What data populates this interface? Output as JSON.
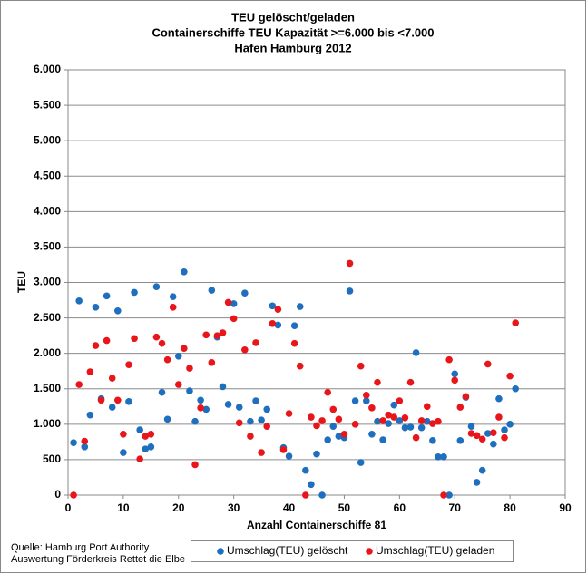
{
  "chart_data": {
    "type": "scatter",
    "title": [
      "TEU gelöscht/geladen",
      "Containerschiffe TEU Kapazität >=6.000 bis <7.000",
      "Hafen Hamburg 2012"
    ],
    "xlabel": "Anzahl Containerschiffe 81",
    "ylabel": "TEU",
    "source": [
      "Quelle: Hamburg Port Authority",
      "Auswertung Förderkreis Rettet die Elbe"
    ],
    "x": [
      1,
      2,
      3,
      4,
      5,
      6,
      7,
      8,
      9,
      10,
      11,
      12,
      13,
      14,
      15,
      16,
      17,
      18,
      19,
      20,
      21,
      22,
      23,
      24,
      25,
      26,
      27,
      28,
      29,
      30,
      31,
      32,
      33,
      34,
      35,
      36,
      37,
      38,
      39,
      40,
      41,
      42,
      43,
      44,
      45,
      46,
      47,
      48,
      49,
      50,
      51,
      52,
      53,
      54,
      55,
      56,
      57,
      58,
      59,
      60,
      61,
      62,
      63,
      64,
      65,
      66,
      67,
      68,
      69,
      70,
      71,
      72,
      73,
      74,
      75,
      76,
      77,
      78,
      79,
      80,
      81
    ],
    "series": [
      {
        "name": "Umschlag(TEU) gelöscht",
        "color": "#1f6fbf",
        "values": [
          740,
          2740,
          680,
          1130,
          2650,
          1360,
          2810,
          1240,
          2600,
          600,
          1320,
          2860,
          920,
          650,
          680,
          2940,
          1450,
          1070,
          2800,
          1960,
          3150,
          1470,
          1040,
          1340,
          1210,
          2890,
          2230,
          1530,
          1280,
          2700,
          1240,
          2850,
          1040,
          1330,
          1060,
          1210,
          2670,
          2400,
          670,
          550,
          2390,
          2660,
          350,
          150,
          580,
          0,
          780,
          970,
          830,
          810,
          2880,
          1330,
          460,
          1330,
          860,
          1040,
          780,
          1010,
          1270,
          1050,
          950,
          960,
          2010,
          950,
          1040,
          770,
          540,
          540,
          0,
          1710,
          770,
          1380,
          970,
          180,
          350,
          870,
          720,
          1360,
          920,
          1000,
          1500
        ]
      },
      {
        "name": "Umschlag(TEU) geladen",
        "color": "#e8161b",
        "values": [
          0,
          1560,
          760,
          1740,
          2110,
          1340,
          2180,
          1650,
          1340,
          860,
          1840,
          2210,
          510,
          830,
          860,
          2230,
          2140,
          1910,
          2650,
          1560,
          2070,
          1790,
          430,
          1230,
          2260,
          1870,
          2250,
          2290,
          2720,
          2490,
          1020,
          2050,
          830,
          2150,
          600,
          970,
          2420,
          2620,
          640,
          1150,
          2140,
          1820,
          0,
          1100,
          980,
          1050,
          1450,
          1210,
          1070,
          860,
          3270,
          1000,
          1820,
          1410,
          1230,
          1590,
          1050,
          1130,
          1100,
          1330,
          1090,
          1590,
          810,
          1050,
          1250,
          1010,
          1040,
          0,
          1910,
          1620,
          1240,
          1390,
          870,
          840,
          790,
          1850,
          880,
          1100,
          810,
          1680,
          2430
        ]
      }
    ],
    "xlim": [
      0,
      90
    ],
    "xticks": [
      0,
      10,
      20,
      30,
      40,
      50,
      60,
      70,
      80,
      90
    ],
    "ylim": [
      0,
      6000
    ],
    "yticks": [
      0,
      {
        "value": 500,
        "label": "500"
      },
      {
        "value": 1000,
        "label": "1.000"
      },
      {
        "value": 1500,
        "label": "1.500"
      },
      {
        "value": 2000,
        "label": "2.000"
      },
      {
        "value": 2500,
        "label": "2.500"
      },
      {
        "value": 3000,
        "label": "3.000"
      },
      {
        "value": 3500,
        "label": "3.500"
      },
      {
        "value": 4000,
        "label": "4.000"
      },
      {
        "value": 4500,
        "label": "4.500"
      },
      {
        "value": 5000,
        "label": "5.000"
      },
      {
        "value": 5500,
        "label": "5.500"
      },
      {
        "value": 6000,
        "label": "6.000"
      }
    ],
    "grid": true
  }
}
